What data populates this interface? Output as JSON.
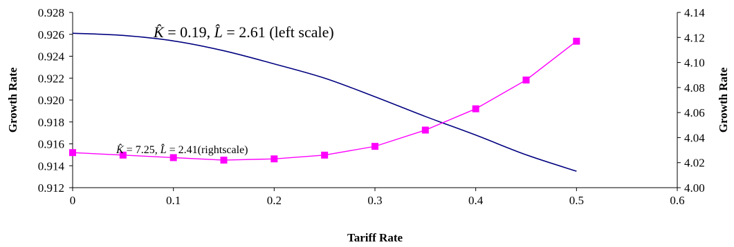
{
  "chart_data": {
    "type": "line",
    "title": "",
    "xlabel": "Tariff Rate",
    "ylabel_left": "Growth Rate",
    "ylabel_right": "Growth Rate",
    "xlim": [
      0,
      0.6
    ],
    "ylim_left": [
      0.912,
      0.928
    ],
    "ylim_right": [
      4.0,
      4.14
    ],
    "x_ticks": [
      "0",
      "0.1",
      "0.2",
      "0.3",
      "0.4",
      "0.5",
      "0.6"
    ],
    "y_left_ticks": [
      "0.912",
      "0.914",
      "0.916",
      "0.918",
      "0.920",
      "0.922",
      "0.924",
      "0.926",
      "0.928"
    ],
    "y_right_ticks": [
      "4.00",
      "4.02",
      "4.04",
      "4.06",
      "4.08",
      "4.10",
      "4.12",
      "4.14"
    ],
    "grid": false,
    "series": [
      {
        "axis": "left",
        "color": "#000080",
        "marker": "none",
        "x": [
          0,
          0.05,
          0.1,
          0.15,
          0.2,
          0.25,
          0.3,
          0.35,
          0.4,
          0.45,
          0.5
        ],
        "values": [
          0.9261,
          0.9259,
          0.9254,
          0.9245,
          0.9233,
          0.922,
          0.9203,
          0.9185,
          0.9168,
          0.915,
          0.9135
        ]
      },
      {
        "axis": "right",
        "color": "#ff00ff",
        "marker": "square",
        "x": [
          0,
          0.05,
          0.1,
          0.15,
          0.2,
          0.25,
          0.3,
          0.35,
          0.4,
          0.45,
          0.5
        ],
        "values": [
          4.028,
          4.026,
          4.024,
          4.022,
          4.023,
          4.026,
          4.033,
          4.046,
          4.063,
          4.086,
          4.117
        ]
      }
    ],
    "annotations": [
      {
        "id": "left",
        "parts": [
          "K̂",
          " = 0.19, ",
          "L̂",
          " = 2.61",
          " (left scale)"
        ]
      },
      {
        "id": "right",
        "parts": [
          "K̂",
          " = 7.25, ",
          "L̂",
          " = 2.41",
          "(rightscale)"
        ]
      }
    ]
  }
}
